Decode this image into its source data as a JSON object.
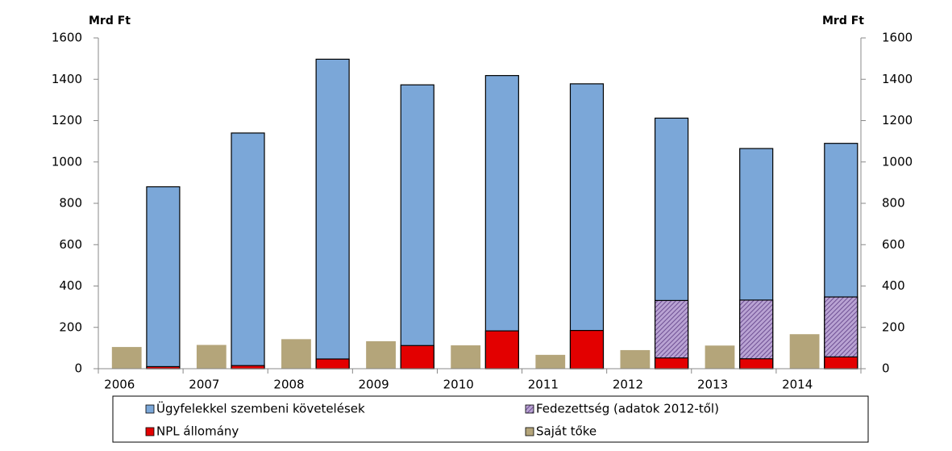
{
  "chart_data": {
    "type": "bar",
    "y_label": "Mrd Ft",
    "y2_label": "Mrd Ft",
    "categories": [
      "2006",
      "2007",
      "2008",
      "2009",
      "2010",
      "2011",
      "2012",
      "2013",
      "2014"
    ],
    "series": [
      {
        "name": "Ügyfelekkel szembeni követelések",
        "color": "#7ba7d8",
        "values": [
          880,
          1140,
          1497,
          1373,
          1418,
          1378,
          1212,
          1065,
          1090
        ]
      },
      {
        "name": "Fedezettség (adatok 2012-től)",
        "color": "#9a80b8",
        "values": [
          null,
          null,
          null,
          null,
          null,
          null,
          330,
          332,
          347
        ]
      },
      {
        "name": "NPL állomány",
        "color": "#e30000",
        "values": [
          10,
          15,
          47,
          112,
          183,
          185,
          52,
          48,
          57
        ]
      },
      {
        "name": "Saját tőke",
        "color": "#b4a57a",
        "values": [
          105,
          115,
          143,
          133,
          113,
          67,
          90,
          112,
          167
        ]
      }
    ],
    "ylim": [
      0,
      1600
    ],
    "yticks": [
      0,
      200,
      400,
      600,
      800,
      1000,
      1200,
      1400,
      1600
    ],
    "y2lim": [
      0,
      1600
    ],
    "y2ticks": [
      0,
      200,
      400,
      600,
      800,
      1000,
      1200,
      1400,
      1600
    ],
    "grid": false
  }
}
